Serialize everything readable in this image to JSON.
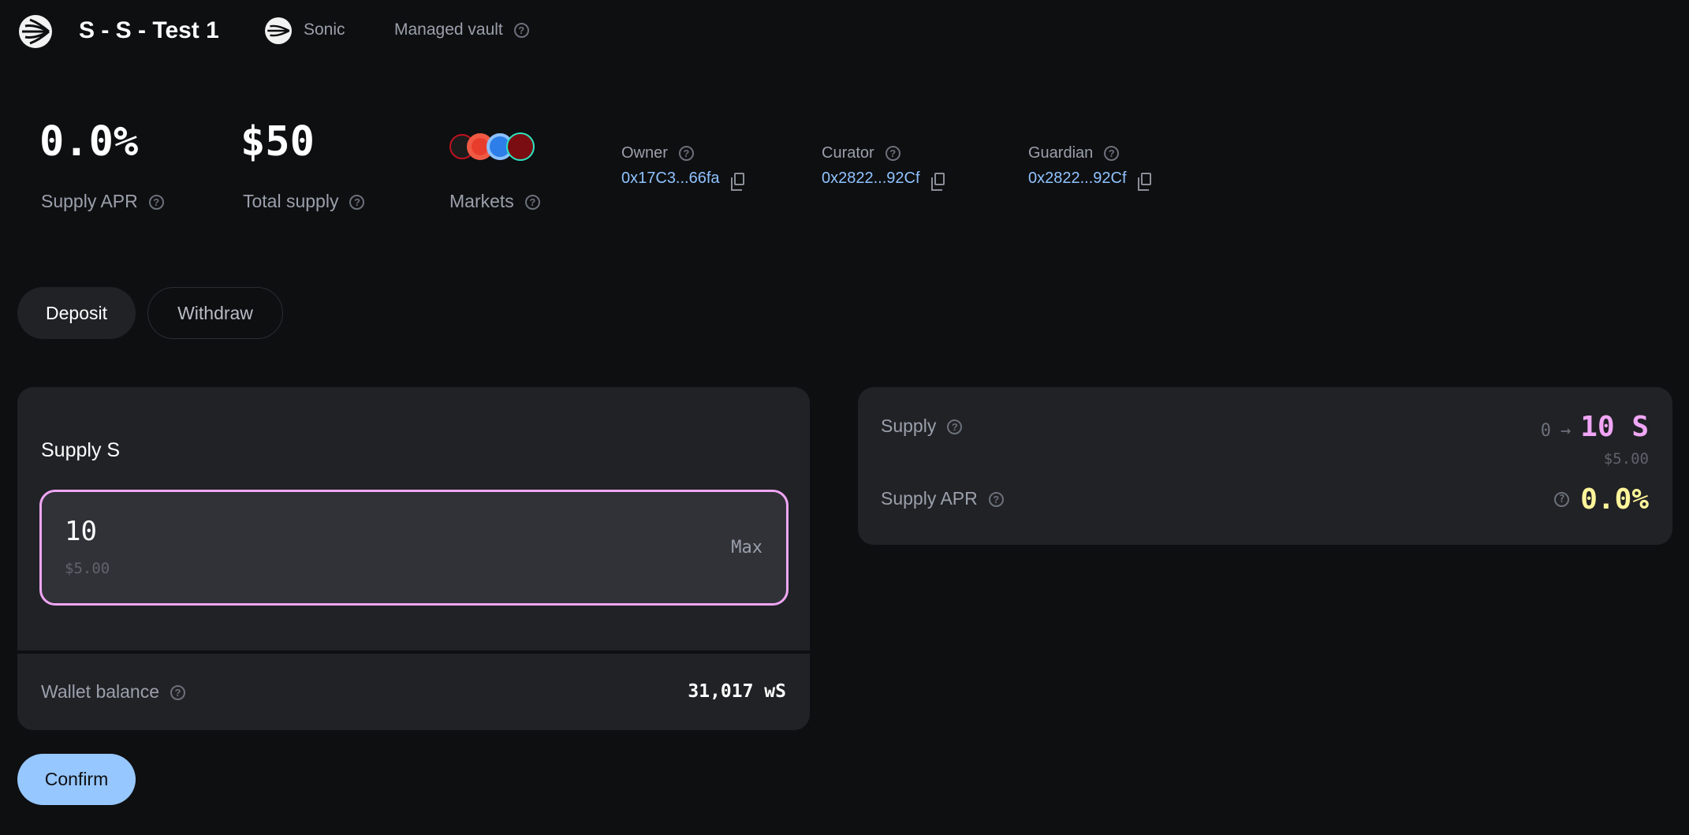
{
  "header": {
    "title": "S - S - Test 1",
    "network": "Sonic",
    "vault_type": "Managed vault"
  },
  "stats": {
    "supply_apr": {
      "value": "0.0%",
      "label": "Supply APR"
    },
    "total_supply": {
      "value": "$50",
      "label": "Total supply"
    },
    "markets": {
      "label": "Markets",
      "icons": [
        "sonic-market-icon",
        "orange-market-icon",
        "blue-market-icon",
        "sonic-market-icon"
      ]
    }
  },
  "roles": {
    "owner": {
      "label": "Owner",
      "address": "0x17C3...66fa"
    },
    "curator": {
      "label": "Curator",
      "address": "0x2822...92Cf"
    },
    "guardian": {
      "label": "Guardian",
      "address": "0x2822...92Cf"
    }
  },
  "tabs": [
    {
      "label": "Deposit",
      "active": true
    },
    {
      "label": "Withdraw",
      "active": false
    }
  ],
  "form": {
    "title": "Supply S",
    "amount": "10",
    "amount_usd": "$5.00",
    "max_label": "Max",
    "wallet_label": "Wallet balance",
    "wallet_value": "31,017 wS",
    "accent": "#f0a6f5"
  },
  "summary": {
    "supply_label": "Supply",
    "supply_from": "0",
    "arrow": "→",
    "supply_to": "10 S",
    "supply_usd": "$5.00",
    "apr_label": "Supply APR",
    "apr_value": "0.0%",
    "apr_color": "#fff59a",
    "supply_color": "#f0a6f5"
  },
  "confirm_label": "Confirm"
}
